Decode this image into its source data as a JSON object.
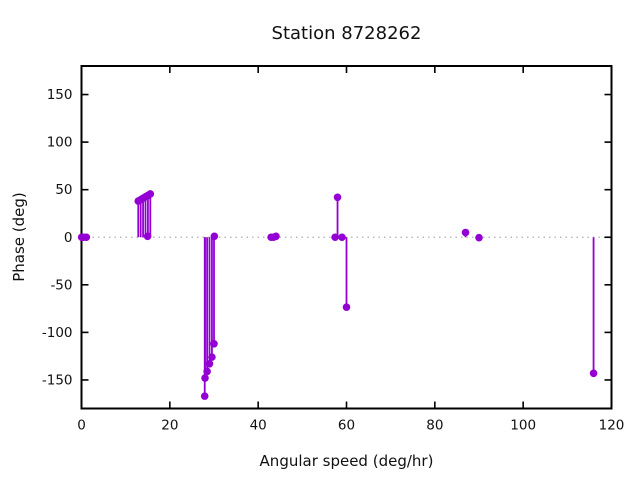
{
  "chart_data": {
    "type": "scatter",
    "style": "points-with-impulses",
    "title": "Station 8728262",
    "xlabel": "Angular speed (deg/hr)",
    "ylabel": "Phase (deg)",
    "xlim": [
      0,
      120
    ],
    "ylim": [
      -180,
      180
    ],
    "xticks": [
      0,
      20,
      40,
      60,
      80,
      100,
      120
    ],
    "yticks": [
      -150,
      -100,
      -50,
      0,
      50,
      100,
      150
    ],
    "grid": false,
    "zero_line": true,
    "legend": "none",
    "series_color": "#9400d3",
    "zero_line_color": "#b0b0b0",
    "border_color": "#000000",
    "points": [
      [
        0.04,
        0
      ],
      [
        0.08,
        0
      ],
      [
        0.54,
        0
      ],
      [
        1.1,
        0
      ],
      [
        12.85,
        38
      ],
      [
        13.4,
        39.5
      ],
      [
        13.94,
        41
      ],
      [
        14.49,
        42.5
      ],
      [
        14.96,
        1
      ],
      [
        15.04,
        44
      ],
      [
        15.58,
        45.5
      ],
      [
        27.9,
        -167
      ],
      [
        27.97,
        -148
      ],
      [
        28.44,
        -141
      ],
      [
        28.98,
        -133
      ],
      [
        29.53,
        -126
      ],
      [
        30.0,
        -112
      ],
      [
        30.08,
        1
      ],
      [
        42.93,
        0
      ],
      [
        43.48,
        0
      ],
      [
        44.03,
        1
      ],
      [
        57.42,
        0
      ],
      [
        57.97,
        42
      ],
      [
        58.98,
        0
      ],
      [
        60.0,
        -73.5
      ],
      [
        86.95,
        5
      ],
      [
        90.0,
        -0.5
      ],
      [
        115.94,
        -143
      ]
    ]
  }
}
